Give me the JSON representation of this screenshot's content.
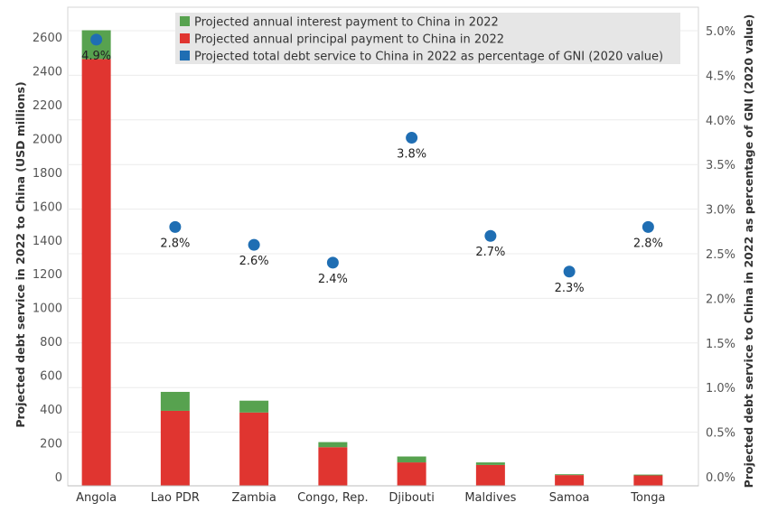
{
  "chart_data": {
    "type": "bar",
    "stacked": true,
    "categories": [
      "Angola",
      "Lao PDR",
      "Zambia",
      "Congo, Rep.",
      "Djibouti",
      "Maldives",
      "Samoa",
      "Tonga"
    ],
    "series": [
      {
        "name": "Projected annual principal payment to China in 2022",
        "axis": "left",
        "color": "#e03530",
        "values": [
          2470,
          390,
          380,
          175,
          85,
          70,
          10,
          8
        ]
      },
      {
        "name": "Projected annual interest payment to China in 2022",
        "axis": "left",
        "color": "#57a24f",
        "values": [
          170,
          112,
          70,
          30,
          35,
          15,
          5,
          5
        ]
      },
      {
        "name": "Projected total debt service to China in 2022 as percentage of GNI (2020 value)",
        "axis": "right",
        "type": "scatter",
        "color": "#1f6eb3",
        "values": [
          4.9,
          2.8,
          2.6,
          2.4,
          3.8,
          2.7,
          2.3,
          2.8
        ],
        "labels": [
          "4.9%",
          "2.8%",
          "2.6%",
          "2.4%",
          "3.8%",
          "2.7%",
          "2.3%",
          "2.8%"
        ]
      }
    ],
    "ylabel": "Projected debt service in 2022 to China (USD millions)",
    "y2label": "Projected debt service to China in 2022 as percentage of GNI (2020 value)",
    "ylim": [
      0,
      2700
    ],
    "yticks": [
      0,
      200,
      400,
      600,
      800,
      1000,
      1200,
      1400,
      1600,
      1800,
      2000,
      2200,
      2400,
      2600
    ],
    "y2lim": [
      0,
      5.25
    ],
    "y2ticks": [
      "0.0%",
      "0.5%",
      "1.0%",
      "1.5%",
      "2.0%",
      "2.5%",
      "3.0%",
      "3.5%",
      "4.0%",
      "4.5%",
      "5.0%"
    ],
    "legend": [
      {
        "label": "Projected annual interest payment to China in 2022",
        "color": "#57a24f"
      },
      {
        "label": "Projected annual principal payment to China in 2022",
        "color": "#e03530"
      },
      {
        "label": "Projected total debt service to China in 2022 as percentage of GNI (2020 value)",
        "color": "#1f6eb3"
      }
    ],
    "legend_position": "top-center",
    "grid": true
  }
}
